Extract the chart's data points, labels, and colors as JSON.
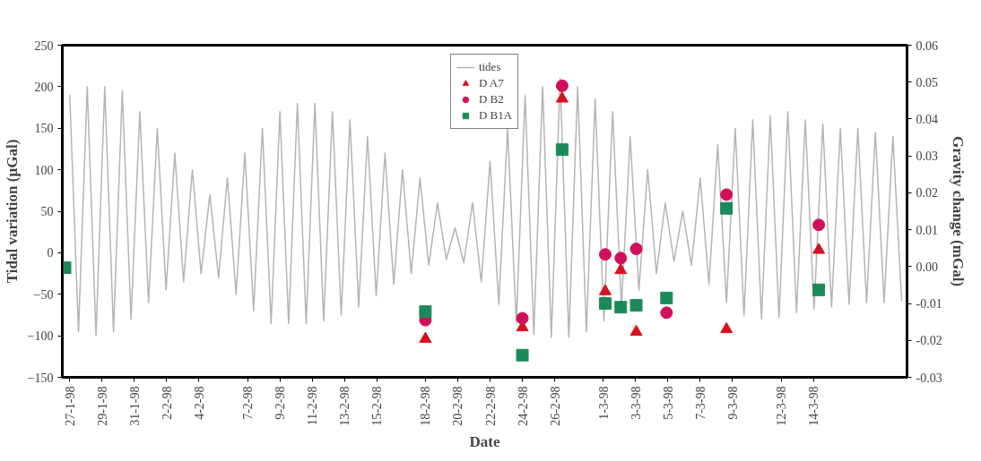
{
  "chart_data": {
    "type": "scatter",
    "xlabel": "Date",
    "ylabel": "Tidal variation (µGal)",
    "y2label": "Gravity change (mGal)",
    "xlim": [
      "1998-01-26T13:00",
      "1998-03-19T19:00"
    ],
    "xticks": [
      {
        "value": "1998-01-27",
        "label": "27-1-98"
      },
      {
        "value": "1998-01-29",
        "label": "29-1-98"
      },
      {
        "value": "1998-01-31",
        "label": "31-1-98"
      },
      {
        "value": "1998-02-02",
        "label": "2-2-98"
      },
      {
        "value": "1998-02-04",
        "label": "4-2-98"
      },
      {
        "value": "1998-02-07",
        "label": "7-2-98"
      },
      {
        "value": "1998-02-09",
        "label": "9-2-98"
      },
      {
        "value": "1998-02-11",
        "label": "11-2-98"
      },
      {
        "value": "1998-02-13",
        "label": "13-2-98"
      },
      {
        "value": "1998-02-15",
        "label": "15-2-98"
      },
      {
        "value": "1998-02-18",
        "label": "18-2-98"
      },
      {
        "value": "1998-02-20",
        "label": "20-2-98"
      },
      {
        "value": "1998-02-22",
        "label": "22-2-98"
      },
      {
        "value": "1998-02-24",
        "label": "24-2-98"
      },
      {
        "value": "1998-02-26",
        "label": "26-2-98"
      },
      {
        "value": "1998-03-01",
        "label": "1-3-98"
      },
      {
        "value": "1998-03-03",
        "label": "3-3-98"
      },
      {
        "value": "1998-03-05",
        "label": "5-3-98"
      },
      {
        "value": "1998-03-07",
        "label": "7-3-98"
      },
      {
        "value": "1998-03-09",
        "label": "9-3-98"
      },
      {
        "value": "1998-03-12",
        "label": "12-3-98"
      },
      {
        "value": "1998-03-14",
        "label": "14-3-98"
      }
    ],
    "ylim": [
      -150,
      250
    ],
    "yticks": [
      -150,
      -100,
      -50,
      0,
      50,
      100,
      150,
      200,
      250
    ],
    "y2lim": [
      -0.03,
      0.06
    ],
    "y2ticks": [
      {
        "value": -0.03,
        "label": "-0.03"
      },
      {
        "value": -0.02,
        "label": "-0.02"
      },
      {
        "value": -0.01,
        "label": "-0.01"
      },
      {
        "value": 0,
        "label": "0.00"
      },
      {
        "value": 0.01,
        "label": "0.01"
      },
      {
        "value": 0.02,
        "label": "0.02"
      },
      {
        "value": 0.03,
        "label": "0.03"
      },
      {
        "value": 0.04,
        "label": "0.04"
      },
      {
        "value": 0.05,
        "label": "0.05"
      },
      {
        "value": 0.06,
        "label": "0.06"
      }
    ],
    "grid": false,
    "legend": "top",
    "series": [
      {
        "name": "tides",
        "type": "line",
        "color": "#b4b4b4",
        "marker": "none",
        "x": [
          "1998-01-27T00:00",
          "1998-01-27T13:00",
          "1998-01-28T02:00",
          "1998-01-28T15:00",
          "1998-01-29T04:00",
          "1998-01-29T17:00",
          "1998-01-30T06:00",
          "1998-01-30T19:00",
          "1998-01-31T08:00",
          "1998-01-31T21:00",
          "1998-02-01T10:00",
          "1998-02-01T23:00",
          "1998-02-02T12:00",
          "1998-02-03T01:00",
          "1998-02-03T14:00",
          "1998-02-04T03:00",
          "1998-02-04T16:00",
          "1998-02-05T05:00",
          "1998-02-05T18:00",
          "1998-02-06T07:00",
          "1998-02-06T20:00",
          "1998-02-07T09:00",
          "1998-02-07T22:00",
          "1998-02-08T11:00",
          "1998-02-09T00:00",
          "1998-02-09T13:00",
          "1998-02-10T02:00",
          "1998-02-10T15:00",
          "1998-02-11T04:00",
          "1998-02-11T17:00",
          "1998-02-12T06:00",
          "1998-02-12T19:00",
          "1998-02-13T08:00",
          "1998-02-13T21:00",
          "1998-02-14T10:00",
          "1998-02-14T23:00",
          "1998-02-15T12:00",
          "1998-02-16T01:00",
          "1998-02-16T14:00",
          "1998-02-17T03:00",
          "1998-02-17T16:00",
          "1998-02-18T05:00",
          "1998-02-18T18:00",
          "1998-02-19T07:00",
          "1998-02-19T20:00",
          "1998-02-20T09:00",
          "1998-02-20T22:00",
          "1998-02-21T11:00",
          "1998-02-22T00:00",
          "1998-02-22T13:00",
          "1998-02-23T02:00",
          "1998-02-23T15:00",
          "1998-02-24T04:00",
          "1998-02-24T17:00",
          "1998-02-25T06:00",
          "1998-02-25T19:00",
          "1998-02-26T08:00",
          "1998-02-26T21:00",
          "1998-02-27T10:00",
          "1998-02-27T23:00",
          "1998-02-28T12:00",
          "1998-03-01T01:00",
          "1998-03-01T14:00",
          "1998-03-02T03:00",
          "1998-03-02T16:00",
          "1998-03-03T05:00",
          "1998-03-03T18:00",
          "1998-03-04T07:00",
          "1998-03-04T20:00",
          "1998-03-05T09:00",
          "1998-03-05T22:00",
          "1998-03-06T11:00",
          "1998-03-07T00:00",
          "1998-03-07T13:00",
          "1998-03-08T02:00",
          "1998-03-08T15:00",
          "1998-03-09T04:00",
          "1998-03-09T17:00",
          "1998-03-10T06:00",
          "1998-03-10T19:00",
          "1998-03-11T08:00",
          "1998-03-11T21:00",
          "1998-03-12T10:00",
          "1998-03-12T23:00",
          "1998-03-13T12:00",
          "1998-03-14T01:00",
          "1998-03-14T14:00",
          "1998-03-15T03:00",
          "1998-03-15T16:00",
          "1998-03-16T05:00",
          "1998-03-16T18:00",
          "1998-03-17T07:00",
          "1998-03-17T20:00",
          "1998-03-18T09:00",
          "1998-03-18T22:00",
          "1998-03-19T11:00"
        ],
        "values": [
          190,
          -95,
          200,
          -100,
          200,
          -95,
          195,
          -80,
          170,
          -60,
          150,
          -45,
          120,
          -35,
          100,
          -25,
          70,
          -30,
          90,
          -50,
          120,
          -70,
          150,
          -85,
          170,
          -85,
          180,
          -85,
          180,
          -82,
          170,
          -75,
          160,
          -65,
          140,
          -52,
          120,
          -38,
          100,
          -25,
          90,
          -15,
          60,
          -8,
          30,
          -12,
          60,
          -35,
          110,
          -62,
          150,
          -85,
          190,
          -98,
          200,
          -102,
          210,
          -102,
          200,
          -95,
          185,
          -82,
          170,
          -65,
          140,
          -45,
          100,
          -25,
          60,
          -10,
          50,
          -15,
          90,
          -38,
          130,
          -60,
          150,
          -75,
          160,
          -80,
          165,
          -78,
          170,
          -72,
          160,
          -68,
          155,
          -65,
          150,
          -62,
          150,
          -60,
          145,
          -60,
          140,
          -58
        ]
      },
      {
        "name": "D A7",
        "axis": "y2",
        "color": "#d7101e",
        "marker": "triangle",
        "x": [
          "1998-02-18T00:00",
          "1998-02-24T00:00",
          "1998-02-26T11:00",
          "1998-03-01T03:00",
          "1998-03-02T02:00",
          "1998-03-03T01:00",
          "1998-03-08T15:00",
          "1998-03-14T08:00"
        ],
        "values": [
          -0.0196,
          -0.0165,
          0.0455,
          -0.0067,
          -0.001,
          -0.0177,
          -0.017,
          0.0045
        ]
      },
      {
        "name": "D B2",
        "axis": "y2",
        "color": "#d0105a",
        "marker": "circle",
        "x": [
          "1998-02-18T00:00",
          "1998-02-24T00:00",
          "1998-02-26T11:00",
          "1998-03-01T03:00",
          "1998-03-02T02:00",
          "1998-03-03T01:00",
          "1998-03-04T22:00",
          "1998-03-08T15:00",
          "1998-03-14T08:00"
        ],
        "values": [
          -0.0145,
          -0.014,
          0.049,
          0.0033,
          0.0023,
          0.0048,
          -0.0125,
          0.0195,
          0.0113
        ]
      },
      {
        "name": "D B1A",
        "axis": "y2",
        "color": "#1b8a5a",
        "marker": "square",
        "x": [
          "1998-01-26T17:00",
          "1998-02-18T00:00",
          "1998-02-24T00:00",
          "1998-02-26T11:00",
          "1998-03-01T03:00",
          "1998-03-02T02:00",
          "1998-03-03T01:00",
          "1998-03-04T22:00",
          "1998-03-08T15:00",
          "1998-03-14T08:00"
        ],
        "values": [
          -0.0003,
          -0.0122,
          -0.024,
          0.0317,
          -0.01,
          -0.011,
          -0.0105,
          -0.0085,
          0.0158,
          -0.0063
        ]
      }
    ]
  }
}
